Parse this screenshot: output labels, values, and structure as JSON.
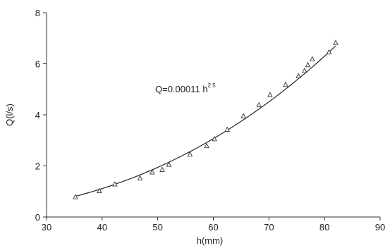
{
  "chart_data": {
    "type": "scatter",
    "xlabel": "h(mm)",
    "ylabel": "Q(l/s)",
    "xlim": [
      30,
      90
    ],
    "ylim": [
      0,
      8
    ],
    "xticks": [
      30,
      40,
      50,
      60,
      70,
      80,
      90
    ],
    "yticks": [
      0,
      2,
      4,
      6,
      8
    ],
    "annotation": {
      "base": "Q=0.00011 h",
      "exponent": "2.5"
    },
    "fit": {
      "coefficient": 0.00011,
      "exponent": 2.5,
      "x_range": [
        35,
        82
      ]
    },
    "series": [
      {
        "marker": "triangle",
        "points": [
          [
            35.2,
            0.78
          ],
          [
            39.5,
            1.02
          ],
          [
            42.3,
            1.28
          ],
          [
            46.8,
            1.52
          ],
          [
            49.0,
            1.75
          ],
          [
            50.8,
            1.85
          ],
          [
            52.0,
            2.05
          ],
          [
            55.8,
            2.45
          ],
          [
            58.8,
            2.78
          ],
          [
            60.2,
            3.05
          ],
          [
            62.5,
            3.42
          ],
          [
            65.4,
            3.95
          ],
          [
            68.2,
            4.38
          ],
          [
            70.2,
            4.78
          ],
          [
            73.0,
            5.18
          ],
          [
            75.3,
            5.52
          ],
          [
            76.4,
            5.72
          ],
          [
            77.0,
            5.95
          ],
          [
            77.8,
            6.18
          ],
          [
            80.8,
            6.45
          ],
          [
            82.0,
            6.82
          ]
        ]
      }
    ]
  }
}
